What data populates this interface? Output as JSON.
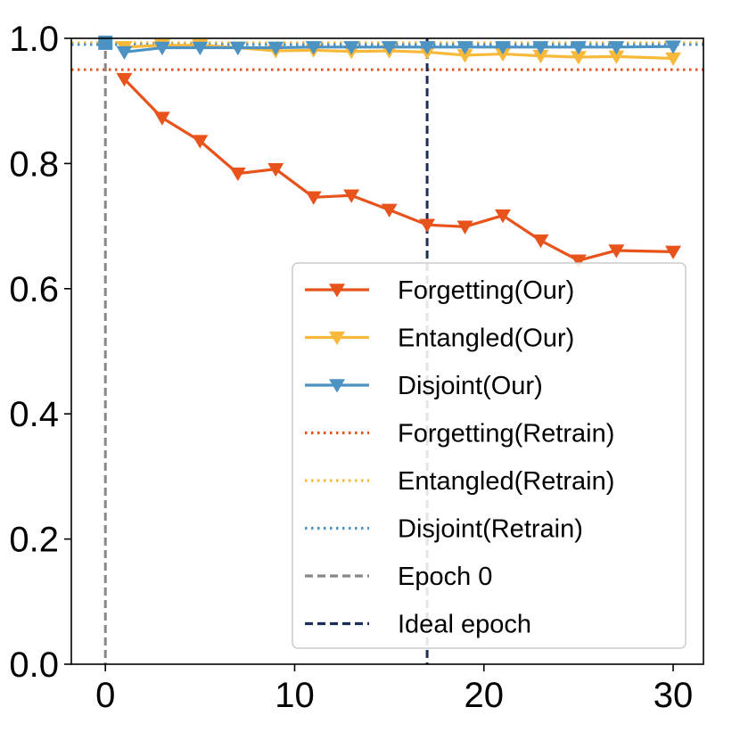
{
  "chart_data": {
    "type": "line",
    "title": "",
    "xlabel": "",
    "ylabel": "",
    "xlim": [
      -1.8,
      31.6
    ],
    "ylim": [
      0.0,
      1.0
    ],
    "xticks": [
      0,
      10,
      20,
      30
    ],
    "yticks": [
      0.0,
      0.2,
      0.4,
      0.6,
      0.8,
      1.0
    ],
    "xtick_labels": [
      "0",
      "10",
      "20",
      "30"
    ],
    "ytick_labels": [
      "0.0",
      "0.2",
      "0.4",
      "0.6",
      "0.8",
      "1.0"
    ],
    "legend_position": "lower-right",
    "series": [
      {
        "name": "Forgetting(Our)",
        "color": "#e8531c",
        "style": "solid",
        "marker": "triangle-down",
        "x": [
          1,
          3,
          5,
          7,
          9,
          11,
          13,
          15,
          17,
          19,
          21,
          23,
          25,
          27,
          30
        ],
        "y": [
          0.935,
          0.873,
          0.836,
          0.784,
          0.791,
          0.746,
          0.749,
          0.726,
          0.702,
          0.699,
          0.717,
          0.677,
          0.645,
          0.661,
          0.659
        ]
      },
      {
        "name": "Entangled(Our)",
        "color": "#f8b93a",
        "style": "solid",
        "marker": "triangle-down",
        "x": [
          1,
          3,
          5,
          7,
          9,
          11,
          13,
          15,
          17,
          19,
          21,
          23,
          25,
          27,
          30
        ],
        "y": [
          0.986,
          0.989,
          0.989,
          0.985,
          0.98,
          0.981,
          0.979,
          0.98,
          0.978,
          0.973,
          0.975,
          0.972,
          0.97,
          0.971,
          0.968
        ]
      },
      {
        "name": "Disjoint(Our)",
        "color": "#4c92c3",
        "style": "solid",
        "marker": "triangle-down",
        "x": [
          1,
          3,
          5,
          7,
          9,
          11,
          13,
          15,
          17,
          19,
          21,
          23,
          25,
          27,
          30
        ],
        "y": [
          0.978,
          0.985,
          0.985,
          0.985,
          0.985,
          0.986,
          0.986,
          0.986,
          0.986,
          0.986,
          0.986,
          0.986,
          0.986,
          0.986,
          0.987
        ]
      },
      {
        "name": "Forgetting(Retrain)",
        "color": "#e8531c",
        "style": "dotted",
        "hline": 0.95
      },
      {
        "name": "Entangled(Retrain)",
        "color": "#f8b93a",
        "style": "dotted",
        "hline": 0.993
      },
      {
        "name": "Disjoint(Retrain)",
        "color": "#4c92c3",
        "style": "dotted",
        "hline": 0.99
      },
      {
        "name": "Epoch 0",
        "color": "#888888",
        "style": "dashed",
        "vline": 0
      },
      {
        "name": "Ideal epoch",
        "color": "#1a2e57",
        "style": "dashed",
        "vline": 17
      }
    ],
    "start_point": {
      "x": 0,
      "y": 0.993,
      "color": "#4c92c3",
      "marker": "square"
    }
  }
}
